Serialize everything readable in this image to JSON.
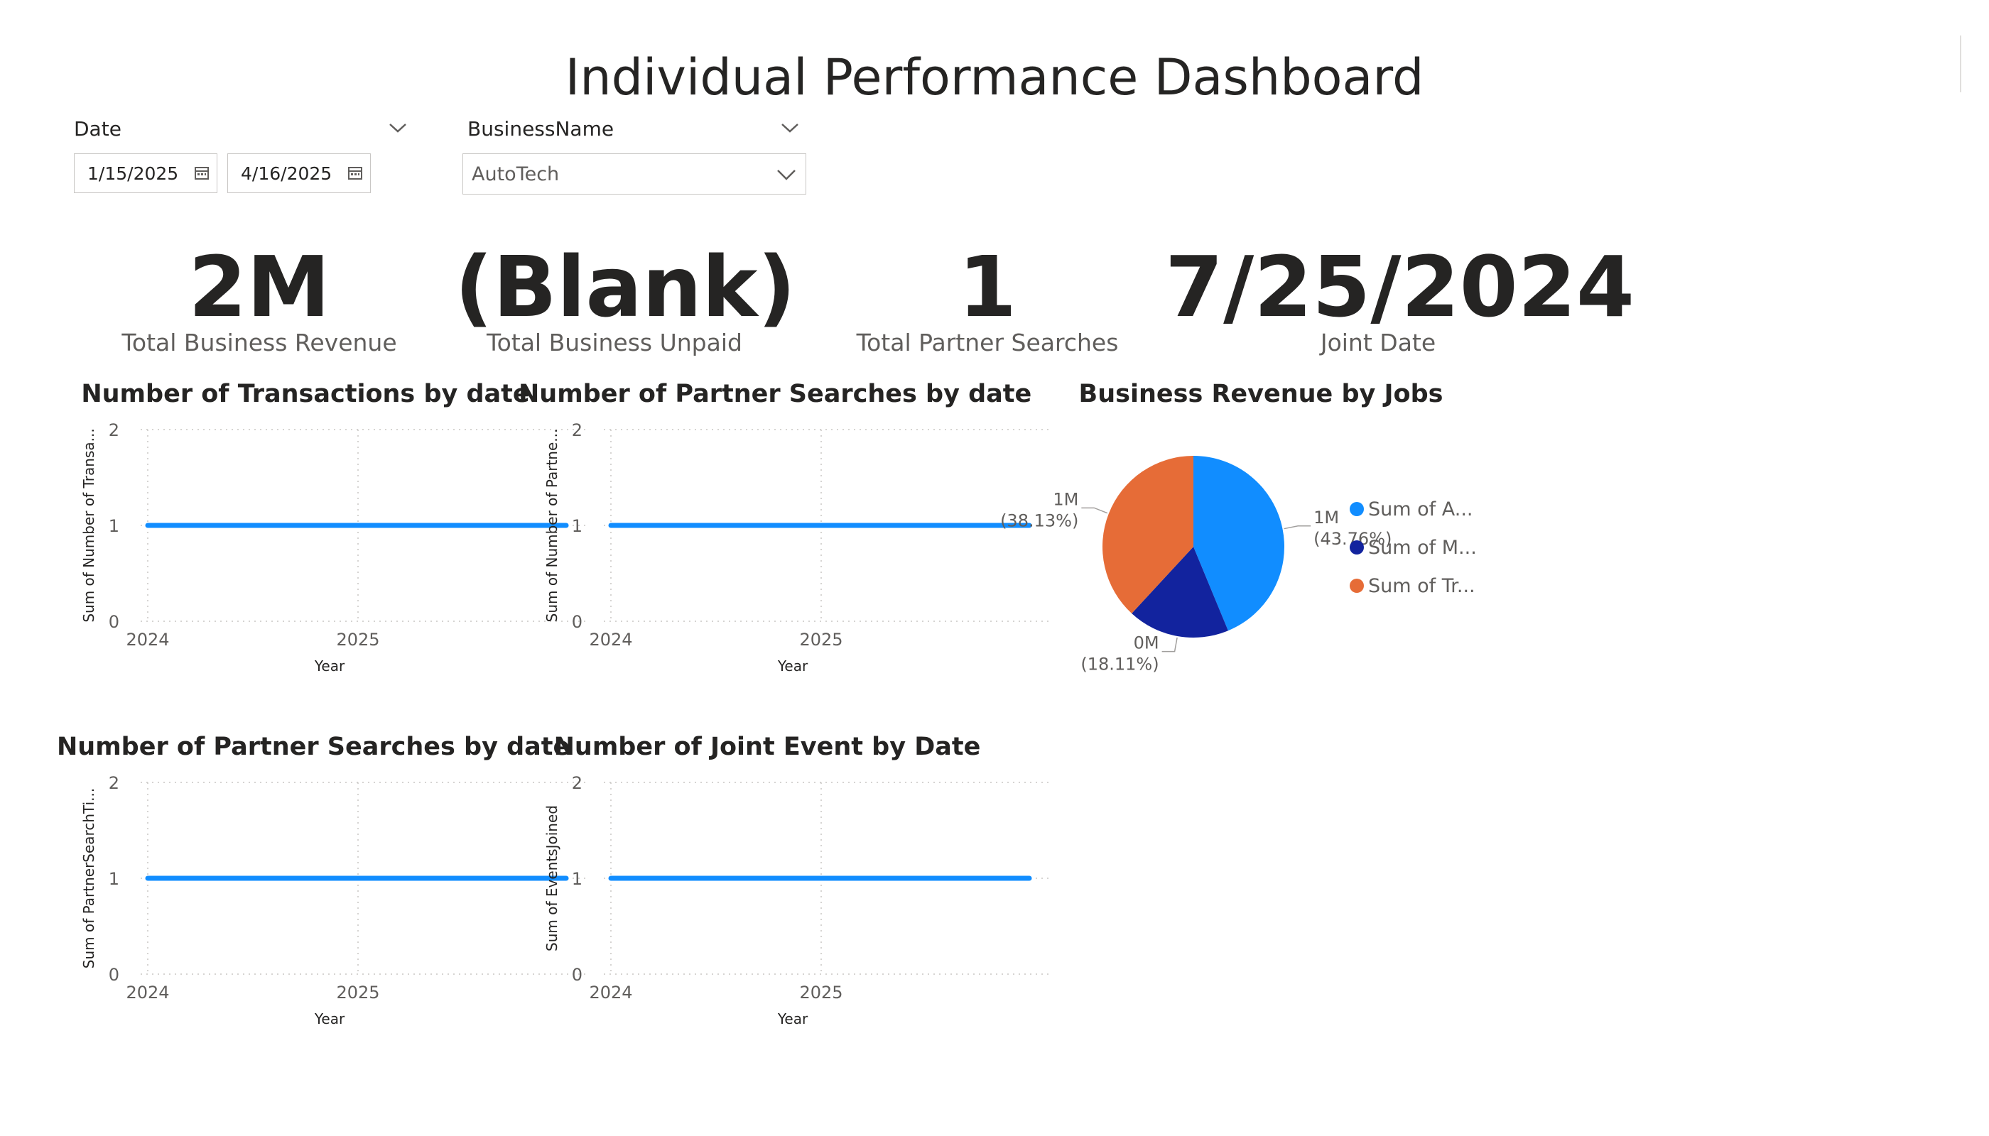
{
  "dashboard": {
    "title": "Individual Performance Dashboard"
  },
  "filters": {
    "date": {
      "label": "Date",
      "start": "1/15/2025",
      "end": "4/16/2025"
    },
    "business": {
      "label": "BusinessName",
      "selected": "AutoTech"
    }
  },
  "kpis": [
    {
      "value": "2M",
      "label": "Total Business Revenue"
    },
    {
      "value": "(Blank)",
      "label": "Total Business Unpaid"
    },
    {
      "value": "1",
      "label": "Total Partner Searches"
    },
    {
      "value": "7/25/2024",
      "label": "Joint Date"
    }
  ],
  "colors": {
    "line": "#118dff",
    "slice_a": "#118dff",
    "slice_m": "#12239e",
    "slice_t": "#e66c37"
  },
  "chart_data": [
    {
      "type": "line",
      "title": "Number of Transactions by date",
      "xlabel": "Year",
      "ylabel": "Sum of Number of Transa...",
      "x_ticks": [
        "2024",
        "2025"
      ],
      "y_ticks": [
        "0",
        "1",
        "2"
      ],
      "ylim": [
        0,
        2
      ],
      "series": [
        {
          "name": "Sum of Number of Transactions",
          "x": [
            2024,
            2025.99
          ],
          "values": [
            1,
            1
          ]
        }
      ]
    },
    {
      "type": "line",
      "title": "Number of Partner Searches by date",
      "xlabel": "Year",
      "ylabel": "Sum of Number of Partne...",
      "x_ticks": [
        "2024",
        "2025"
      ],
      "y_ticks": [
        "0",
        "1",
        "2"
      ],
      "ylim": [
        0,
        2
      ],
      "series": [
        {
          "name": "Sum of Number of Partner Searches",
          "x": [
            2024,
            2025.99
          ],
          "values": [
            1,
            1
          ]
        }
      ]
    },
    {
      "type": "line",
      "title": "Number of Partner Searches by date",
      "xlabel": "Year",
      "ylabel": "Sum of PartnerSearchTi...",
      "x_ticks": [
        "2024",
        "2025"
      ],
      "y_ticks": [
        "0",
        "1",
        "2"
      ],
      "ylim": [
        0,
        2
      ],
      "series": [
        {
          "name": "Sum of PartnerSearchTimes",
          "x": [
            2024,
            2025.99
          ],
          "values": [
            1,
            1
          ]
        }
      ]
    },
    {
      "type": "line",
      "title": "Number of Joint Event by Date",
      "xlabel": "Year",
      "ylabel": "Sum of EventsJoined",
      "x_ticks": [
        "2024",
        "2025"
      ],
      "y_ticks": [
        "0",
        "1",
        "2"
      ],
      "ylim": [
        0,
        2
      ],
      "series": [
        {
          "name": "Sum of EventsJoined",
          "x": [
            2024,
            2025.99
          ],
          "values": [
            1,
            1
          ]
        }
      ]
    },
    {
      "type": "pie",
      "title": "Business Revenue by Jobs",
      "slices": [
        {
          "legend": "Sum of A...",
          "value_label": "1M",
          "pct_label": "(43.76%)",
          "percent": 43.76,
          "color": "#118dff"
        },
        {
          "legend": "Sum of M...",
          "value_label": "0M",
          "pct_label": "(18.11%)",
          "percent": 18.11,
          "color": "#12239e"
        },
        {
          "legend": "Sum of Tr...",
          "value_label": "1M",
          "pct_label": "(38.13%)",
          "percent": 38.13,
          "color": "#e66c37"
        }
      ]
    }
  ]
}
